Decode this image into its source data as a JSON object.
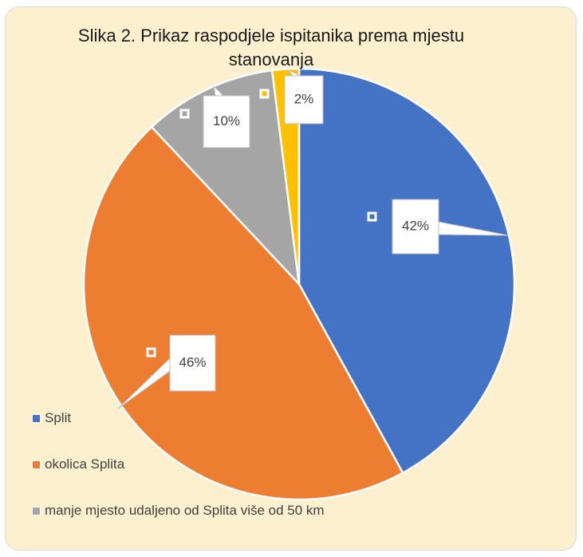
{
  "chart_data": {
    "type": "pie",
    "title": "Slika 2. Prikaz raspodjele ispitanika prema mjestu stanovanja",
    "categories": [
      "Split",
      "okolica Splita",
      "manje mjesto udaljeno od Splita više od 50 km",
      null
    ],
    "values": [
      42,
      46,
      10,
      2
    ],
    "value_labels": [
      "42%",
      "46%",
      "10%",
      "2%"
    ],
    "colors": [
      "#4472c4",
      "#ed7d31",
      "#a5a5a5",
      "#ffc000"
    ],
    "legend": "bottom-left"
  }
}
